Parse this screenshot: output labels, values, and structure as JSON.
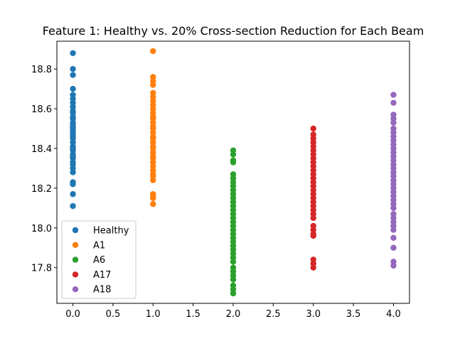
{
  "chart_data": {
    "type": "scatter",
    "title": "Feature 1: Healthy vs. 20% Cross-section Reduction for Each Beam",
    "xlabel": "",
    "ylabel": "",
    "xlim": [
      -0.2,
      4.2
    ],
    "ylim": [
      17.62,
      18.94
    ],
    "xticks": [
      0.0,
      0.5,
      1.0,
      1.5,
      2.0,
      2.5,
      3.0,
      3.5,
      4.0
    ],
    "xtick_labels": [
      "0.0",
      "0.5",
      "1.0",
      "1.5",
      "2.0",
      "2.5",
      "3.0",
      "3.5",
      "4.0"
    ],
    "yticks": [
      17.8,
      18.0,
      18.2,
      18.4,
      18.6,
      18.8
    ],
    "ytick_labels": [
      "17.8",
      "18.0",
      "18.2",
      "18.4",
      "18.6",
      "18.8"
    ],
    "grid": false,
    "legend_position": "lower-left",
    "series": [
      {
        "name": "Healthy",
        "color": "#1f77b4",
        "x": 0,
        "y": [
          18.88,
          18.8,
          18.77,
          18.7,
          18.67,
          18.65,
          18.63,
          18.61,
          18.59,
          18.58,
          18.56,
          18.55,
          18.53,
          18.52,
          18.51,
          18.5,
          18.49,
          18.48,
          18.47,
          18.46,
          18.45,
          18.43,
          18.41,
          18.4,
          18.39,
          18.37,
          18.36,
          18.35,
          18.33,
          18.32,
          18.3,
          18.28,
          18.23,
          18.22,
          18.17,
          18.11
        ]
      },
      {
        "name": "A1",
        "color": "#ff7f0e",
        "x": 1,
        "y": [
          18.89,
          18.76,
          18.74,
          18.72,
          18.68,
          18.66,
          18.64,
          18.62,
          18.6,
          18.58,
          18.56,
          18.55,
          18.53,
          18.51,
          18.5,
          18.48,
          18.46,
          18.45,
          18.43,
          18.41,
          18.4,
          18.38,
          18.36,
          18.35,
          18.33,
          18.31,
          18.29,
          18.27,
          18.26,
          18.24,
          18.17,
          18.16,
          18.15,
          18.12
        ]
      },
      {
        "name": "A6",
        "color": "#2ca02c",
        "x": 2,
        "y": [
          18.39,
          18.37,
          18.34,
          18.33,
          18.27,
          18.25,
          18.23,
          18.21,
          18.19,
          18.17,
          18.15,
          18.13,
          18.11,
          18.09,
          18.07,
          18.05,
          18.03,
          18.01,
          17.99,
          17.97,
          17.95,
          17.93,
          17.91,
          17.89,
          17.87,
          17.85,
          17.83,
          17.8,
          17.78,
          17.76,
          17.74,
          17.71,
          17.69,
          17.67
        ]
      },
      {
        "name": "A17",
        "color": "#d62728",
        "x": 3,
        "y": [
          18.5,
          18.47,
          18.45,
          18.43,
          18.41,
          18.39,
          18.37,
          18.35,
          18.33,
          18.31,
          18.29,
          18.27,
          18.25,
          18.23,
          18.21,
          18.19,
          18.17,
          18.15,
          18.13,
          18.11,
          18.09,
          18.07,
          18.05,
          18.01,
          17.99,
          17.97,
          17.96,
          17.84,
          17.82,
          17.8
        ]
      },
      {
        "name": "A18",
        "color": "#9467bd",
        "x": 4,
        "y": [
          18.67,
          18.63,
          18.57,
          18.55,
          18.53,
          18.5,
          18.48,
          18.46,
          18.44,
          18.42,
          18.4,
          18.38,
          18.36,
          18.34,
          18.32,
          18.3,
          18.28,
          18.26,
          18.24,
          18.22,
          18.2,
          18.18,
          18.16,
          18.14,
          18.12,
          18.1,
          18.07,
          18.05,
          18.03,
          18.01,
          17.99,
          17.95,
          17.9,
          17.83,
          17.81
        ]
      }
    ]
  }
}
